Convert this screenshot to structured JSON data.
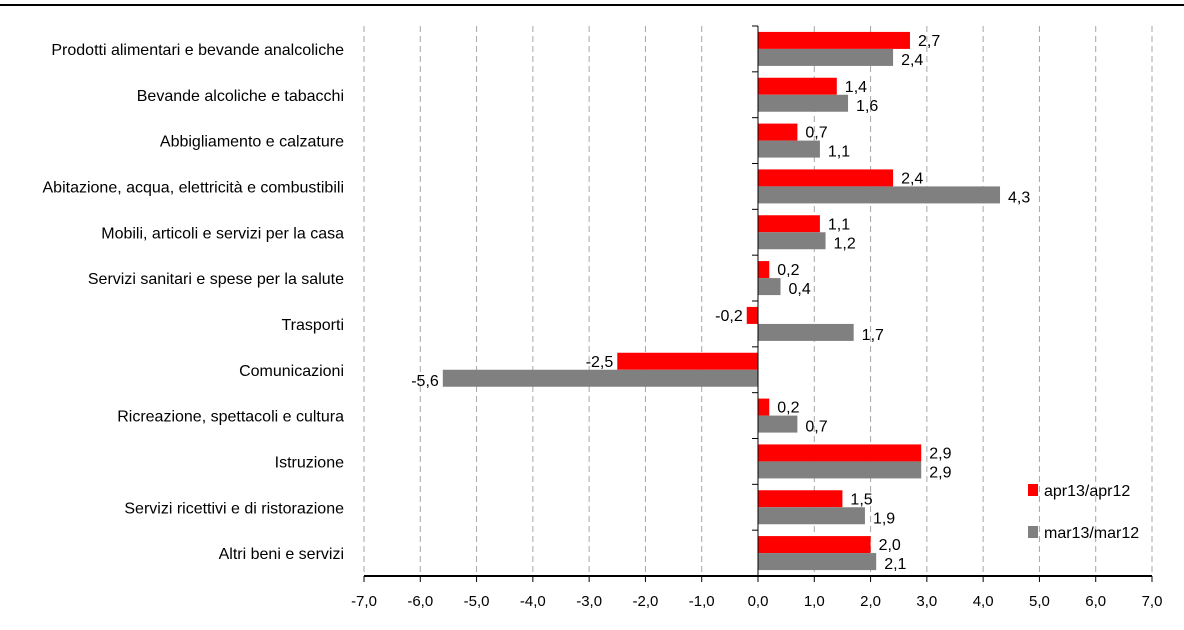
{
  "chart_data": {
    "type": "bar",
    "orientation": "horizontal",
    "categories": [
      "Prodotti alimentari e bevande analcoliche",
      "Bevande alcoliche e tabacchi",
      "Abbigliamento e calzature",
      "Abitazione, acqua, elettricità e combustibili",
      "Mobili, articoli e servizi per la casa",
      "Servizi sanitari e spese per la salute",
      "Trasporti",
      "Comunicazioni",
      "Ricreazione, spettacoli e cultura",
      "Istruzione",
      "Servizi ricettivi e di ristorazione",
      "Altri beni e servizi"
    ],
    "series": [
      {
        "name": "apr13/apr12",
        "color": "#ff0000",
        "values": [
          2.7,
          1.4,
          0.7,
          2.4,
          1.1,
          0.2,
          -0.2,
          -2.5,
          0.2,
          2.9,
          1.5,
          2.0
        ],
        "labels": [
          "2,7",
          "1,4",
          "0,7",
          "2,4",
          "1,1",
          "0,2",
          "-0,2",
          "-2,5",
          "0,2",
          "2,9",
          "1,5",
          "2,0"
        ]
      },
      {
        "name": "mar13/mar12",
        "color": "#808080",
        "values": [
          2.4,
          1.6,
          1.1,
          4.3,
          1.2,
          0.4,
          1.7,
          -5.6,
          0.7,
          2.9,
          1.9,
          2.1
        ],
        "labels": [
          "2,4",
          "1,6",
          "1,1",
          "4,3",
          "1,2",
          "0,4",
          "1,7",
          "-5,6",
          "0,7",
          "2,9",
          "1,9",
          "2,1"
        ]
      }
    ],
    "xlim": [
      -7,
      7
    ],
    "x_ticks": [
      -7,
      -6,
      -5,
      -4,
      -3,
      -2,
      -1,
      0,
      1,
      2,
      3,
      4,
      5,
      6,
      7
    ],
    "x_tick_labels": [
      "-7,0",
      "-6,0",
      "-5,0",
      "-4,0",
      "-3,0",
      "-2,0",
      "-1,0",
      "0,0",
      "1,0",
      "2,0",
      "3,0",
      "4,0",
      "5,0",
      "6,0",
      "7,0"
    ],
    "grid": "vertical-dashed",
    "legend_position": "bottom-right"
  }
}
